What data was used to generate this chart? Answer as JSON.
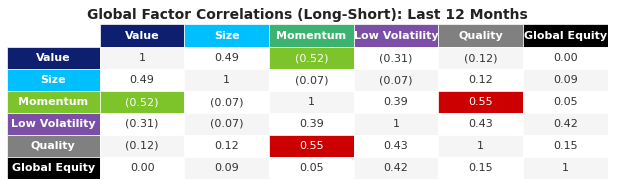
{
  "title": "Global Factor Correlations (Long-Short): Last 12 Months",
  "row_labels": [
    "Value",
    "Size",
    "Momentum",
    "Low Volatility",
    "Quality",
    "Global Equity"
  ],
  "col_labels": [
    "Value",
    "Size",
    "Momentum",
    "Low Volatility",
    "Quality",
    "Global Equity"
  ],
  "row_colors": [
    "#0d1f6e",
    "#00bfff",
    "#7dc32a",
    "#7b4fa6",
    "#808080",
    "#000000"
  ],
  "col_colors": [
    "#0d1f6e",
    "#00bfff",
    "#3cb371",
    "#7b4fa6",
    "#808080",
    "#000000"
  ],
  "cell_values": [
    [
      "1",
      "0.49",
      "(0.52)",
      "(0.31)",
      "(0.12)",
      "0.00"
    ],
    [
      "0.49",
      "1",
      "(0.07)",
      "(0.07)",
      "0.12",
      "0.09"
    ],
    [
      "(0.52)",
      "(0.07)",
      "1",
      "0.39",
      "0.55",
      "0.05"
    ],
    [
      "(0.31)",
      "(0.07)",
      "0.39",
      "1",
      "0.43",
      "0.42"
    ],
    [
      "(0.12)",
      "0.12",
      "0.55",
      "0.43",
      "1",
      "0.15"
    ],
    [
      "0.00",
      "0.09",
      "0.05",
      "0.42",
      "0.15",
      "1"
    ]
  ],
  "highlight_cells": [
    [
      0,
      2,
      "#7dc32a"
    ],
    [
      2,
      0,
      "#7dc32a"
    ],
    [
      2,
      4,
      "#cc0000"
    ],
    [
      4,
      2,
      "#cc0000"
    ]
  ],
  "highlight_text_color": "white",
  "default_text_color": "#333333",
  "background_color": "#ffffff",
  "title_fontsize": 10,
  "col_label_fontsize": 8,
  "row_label_fontsize": 8,
  "cell_fontsize": 8
}
